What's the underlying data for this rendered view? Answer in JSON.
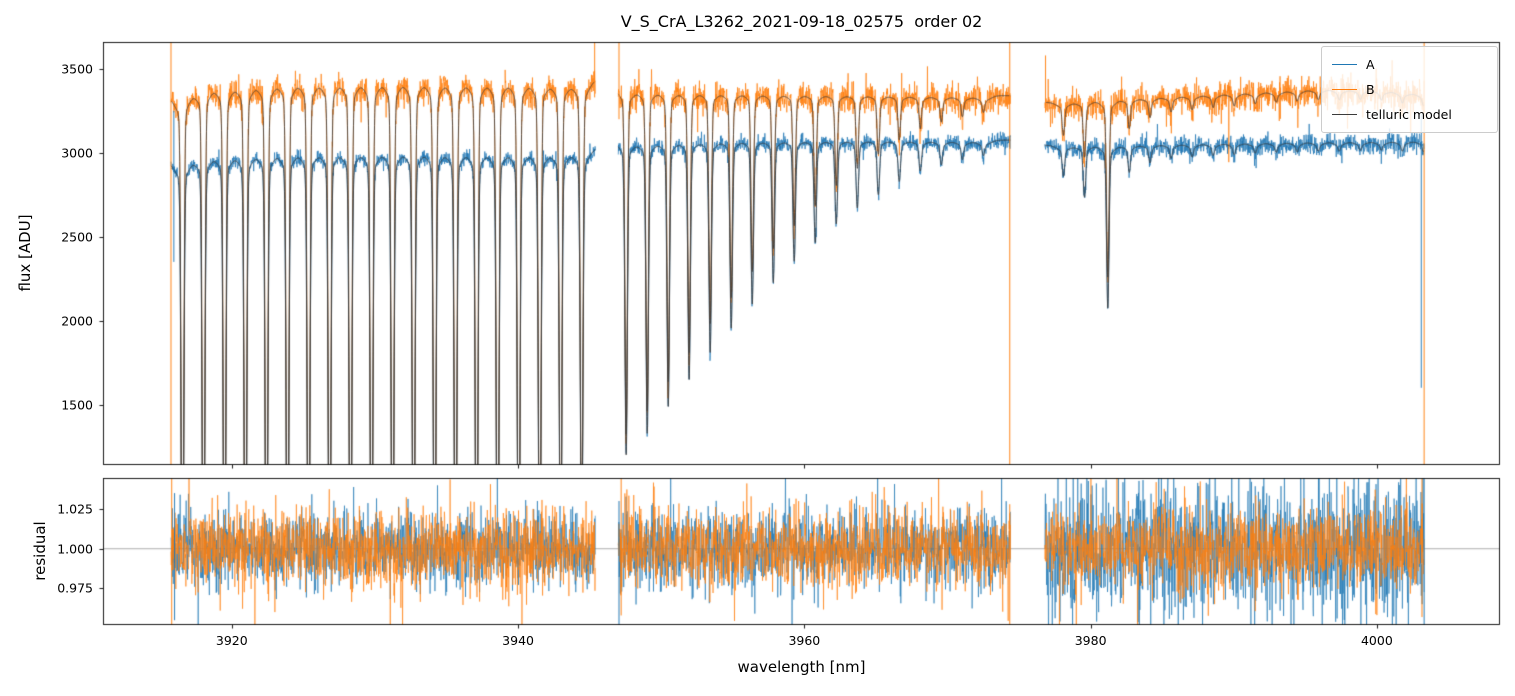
{
  "chart_data": {
    "type": "line",
    "title": "V_S_CrA_L3262_2021-09-18_02575  order 02",
    "xlabel": "wavelength [nm]",
    "xlim": [
      3911.0,
      4008.6
    ],
    "xticks": [
      {
        "label": "3920",
        "value": 3920
      },
      {
        "label": "3940",
        "value": 3940
      },
      {
        "label": "3960",
        "value": 3960
      },
      {
        "label": "3980",
        "value": 3980
      },
      {
        "label": "4000",
        "value": 4000
      }
    ],
    "panels": [
      {
        "name": "flux",
        "ylabel": "flux [ADU]",
        "ylim": [
          1140,
          3660
        ],
        "yticks": [
          {
            "label": "1500",
            "value": 1500
          },
          {
            "label": "2000",
            "value": 2000
          },
          {
            "label": "2500",
            "value": 2500
          },
          {
            "label": "3000",
            "value": 3000
          },
          {
            "label": "3500",
            "value": 3500
          }
        ]
      },
      {
        "name": "residual",
        "ylabel": "residual",
        "ylim": [
          0.952,
          1.0445
        ],
        "yticks": [
          {
            "label": "0.975",
            "value": 0.975
          },
          {
            "label": "1.000",
            "value": 1.0
          },
          {
            "label": "1.025",
            "value": 1.025
          }
        ],
        "hline": 1.0
      }
    ],
    "legend": {
      "position": "upper right",
      "entries": [
        {
          "label": "A",
          "color": "#1f77b4"
        },
        {
          "label": "B",
          "color": "#ff7f0e"
        },
        {
          "label": "telluric model",
          "color": "#3b3b3b"
        }
      ]
    },
    "colors": {
      "A": "#1f77b4",
      "B": "#ff7f0e",
      "model": "#3b3b3b",
      "hline": "#999999",
      "spine": "#000000"
    },
    "segments": [
      {
        "range": [
          3915.75,
          3945.4
        ],
        "A_cont": [
          [
            3915.75,
            2950
          ],
          [
            3918,
            3015
          ],
          [
            3924,
            3040
          ],
          [
            3932,
            3045
          ],
          [
            3940,
            3040
          ],
          [
            3945.4,
            3030
          ]
        ],
        "B_cont": [
          [
            3915.75,
            3340
          ],
          [
            3918,
            3430
          ],
          [
            3924,
            3465
          ],
          [
            3932,
            3470
          ],
          [
            3940,
            3465
          ],
          [
            3945.4,
            3440
          ]
        ],
        "lines": [
          [
            3916.55,
            0.0
          ],
          [
            3918.02,
            0.0
          ],
          [
            3919.49,
            0.0
          ],
          [
            3920.95,
            0.0
          ],
          [
            3922.42,
            0.0
          ],
          [
            3923.89,
            0.0
          ],
          [
            3925.36,
            0.0
          ],
          [
            3926.83,
            0.0
          ],
          [
            3928.29,
            0.0
          ],
          [
            3929.76,
            0.0
          ],
          [
            3931.23,
            0.0
          ],
          [
            3932.7,
            0.0
          ],
          [
            3934.17,
            0.0
          ],
          [
            3935.63,
            0.0
          ],
          [
            3937.1,
            0.0
          ],
          [
            3938.57,
            0.0
          ],
          [
            3940.04,
            0.02
          ],
          [
            3941.51,
            0.07
          ],
          [
            3942.97,
            0.13
          ],
          [
            3944.44,
            0.2
          ]
        ]
      },
      {
        "range": [
          3947.0,
          3974.4
        ],
        "A_cont": [
          [
            3947,
            3080
          ],
          [
            3955,
            3090
          ],
          [
            3965,
            3085
          ],
          [
            3974.4,
            3075
          ]
        ],
        "B_cont": [
          [
            3947,
            3400
          ],
          [
            3952,
            3385
          ],
          [
            3960,
            3365
          ],
          [
            3968,
            3350
          ],
          [
            3974.4,
            3340
          ]
        ],
        "lines": [
          [
            3947.55,
            0.42
          ],
          [
            3949.02,
            0.46
          ],
          [
            3950.49,
            0.51
          ],
          [
            3951.95,
            0.56
          ],
          [
            3953.42,
            0.61
          ],
          [
            3954.89,
            0.655
          ],
          [
            3956.36,
            0.7
          ],
          [
            3957.83,
            0.74
          ],
          [
            3959.29,
            0.78
          ],
          [
            3960.76,
            0.815
          ],
          [
            3962.23,
            0.85
          ],
          [
            3963.7,
            0.88
          ],
          [
            3965.17,
            0.905
          ],
          [
            3966.63,
            0.93
          ],
          [
            3968.1,
            0.95
          ],
          [
            3969.57,
            0.962
          ],
          [
            3971.04,
            0.972
          ],
          [
            3972.51,
            0.98
          ]
        ]
      },
      {
        "range": [
          3976.8,
          4003.3
        ],
        "A_cont": [
          [
            3976.8,
            3045
          ],
          [
            3985,
            3060
          ],
          [
            3995,
            3075
          ],
          [
            4003.3,
            3080
          ]
        ],
        "B_cont": [
          [
            3976.8,
            3300
          ],
          [
            3982,
            3330
          ],
          [
            3990,
            3365
          ],
          [
            3996,
            3390
          ],
          [
            4000,
            3385
          ],
          [
            4003.3,
            3360
          ]
        ],
        "lines": [
          [
            3978.1,
            0.95
          ],
          [
            3979.57,
            0.91
          ],
          [
            3981.2,
            0.7
          ],
          [
            3982.7,
            0.955
          ],
          [
            3984.15,
            0.972
          ],
          [
            3985.62,
            0.98
          ],
          [
            3987.09,
            0.982
          ],
          [
            3988.56,
            0.984
          ],
          [
            3990.03,
            0.985
          ],
          [
            3991.5,
            0.987
          ],
          [
            3992.97,
            0.988
          ],
          [
            3994.43,
            0.988
          ],
          [
            3995.9,
            0.989
          ],
          [
            3997.37,
            0.989
          ],
          [
            3998.84,
            0.99
          ],
          [
            4000.31,
            0.99
          ],
          [
            4001.78,
            0.988
          ],
          [
            4003.25,
            0.987
          ]
        ]
      }
    ],
    "noise": {
      "flux_sigma_A": [
        20,
        22,
        27
      ],
      "flux_sigma_B": [
        38,
        40,
        42
      ],
      "residual_sigma_A": [
        0.011,
        0.012,
        0.0205
      ],
      "residual_sigma_B": [
        0.012,
        0.012,
        0.0125
      ]
    },
    "edge_spikes_flux": [
      {
        "x": 3915.75,
        "series": "B",
        "span": [
          1140,
          3660
        ]
      },
      {
        "x": 3915.95,
        "series": "A",
        "span": [
          2350,
          3250
        ]
      },
      {
        "x": 3945.35,
        "series": "B",
        "span": [
          3330,
          3660
        ]
      },
      {
        "x": 3947.05,
        "series": "B",
        "span": [
          3200,
          3660
        ]
      },
      {
        "x": 3974.35,
        "series": "B",
        "span": [
          1140,
          3660
        ]
      },
      {
        "x": 3976.85,
        "series": "B",
        "span": [
          3240,
          3580
        ]
      },
      {
        "x": 4003.3,
        "series": "B",
        "span": [
          1140,
          3660
        ]
      },
      {
        "x": 4003.1,
        "series": "A",
        "span": [
          1600,
          3230
        ]
      }
    ],
    "edge_spikes_residual": [
      {
        "x": 3915.8,
        "series": "B",
        "span": [
          0.952,
          1.0445
        ]
      },
      {
        "x": 3916.0,
        "series": "A",
        "span": [
          0.955,
          1.035
        ]
      },
      {
        "x": 3947.05,
        "series": "A",
        "span": [
          0.952,
          1.03
        ]
      },
      {
        "x": 3947.2,
        "series": "B",
        "span": [
          0.958,
          1.0445
        ]
      },
      {
        "x": 3974.35,
        "series": "B",
        "span": [
          0.952,
          1.028
        ]
      },
      {
        "x": 4003.15,
        "series": "B",
        "span": [
          0.957,
          1.0445
        ]
      },
      {
        "x": 4003.3,
        "series": "A",
        "span": [
          0.952,
          1.0445
        ]
      }
    ]
  }
}
